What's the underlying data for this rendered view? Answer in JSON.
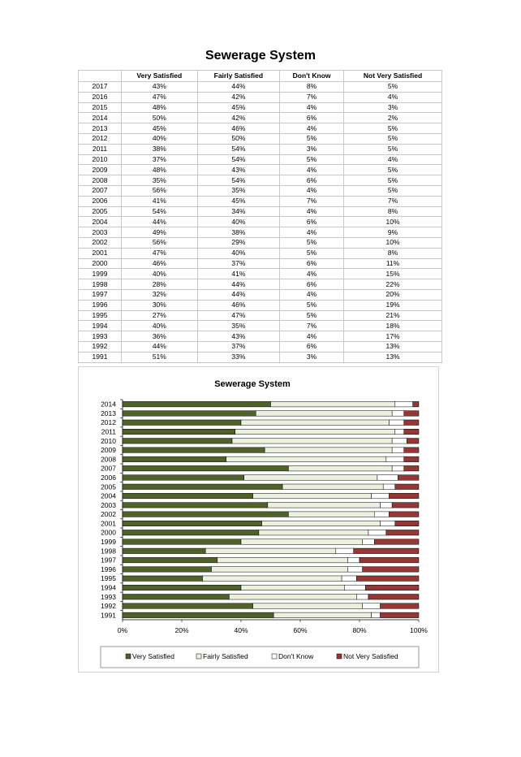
{
  "page_title": "Sewerage System",
  "table": {
    "headers": [
      "",
      "Very Satisfied",
      "Fairly Satisfied",
      "Don't Know",
      "Not Very Satisfied"
    ],
    "rows": [
      [
        "2017",
        "43%",
        "44%",
        "8%",
        "5%"
      ],
      [
        "2016",
        "47%",
        "42%",
        "7%",
        "4%"
      ],
      [
        "2015",
        "48%",
        "45%",
        "4%",
        "3%"
      ],
      [
        "2014",
        "50%",
        "42%",
        "6%",
        "2%"
      ],
      [
        "2013",
        "45%",
        "46%",
        "4%",
        "5%"
      ],
      [
        "2012",
        "40%",
        "50%",
        "5%",
        "5%"
      ],
      [
        "2011",
        "38%",
        "54%",
        "3%",
        "5%"
      ],
      [
        "2010",
        "37%",
        "54%",
        "5%",
        "4%"
      ],
      [
        "2009",
        "48%",
        "43%",
        "4%",
        "5%"
      ],
      [
        "2008",
        "35%",
        "54%",
        "6%",
        "5%"
      ],
      [
        "2007",
        "56%",
        "35%",
        "4%",
        "5%"
      ],
      [
        "2006",
        "41%",
        "45%",
        "7%",
        "7%"
      ],
      [
        "2005",
        "54%",
        "34%",
        "4%",
        "8%"
      ],
      [
        "2004",
        "44%",
        "40%",
        "6%",
        "10%"
      ],
      [
        "2003",
        "49%",
        "38%",
        "4%",
        "9%"
      ],
      [
        "2002",
        "56%",
        "29%",
        "5%",
        "10%"
      ],
      [
        "2001",
        "47%",
        "40%",
        "5%",
        "8%"
      ],
      [
        "2000",
        "46%",
        "37%",
        "6%",
        "11%"
      ],
      [
        "1999",
        "40%",
        "41%",
        "4%",
        "15%"
      ],
      [
        "1998",
        "28%",
        "44%",
        "6%",
        "22%"
      ],
      [
        "1997",
        "32%",
        "44%",
        "4%",
        "20%"
      ],
      [
        "1996",
        "30%",
        "46%",
        "5%",
        "19%"
      ],
      [
        "1995",
        "27%",
        "47%",
        "5%",
        "21%"
      ],
      [
        "1994",
        "40%",
        "35%",
        "7%",
        "18%"
      ],
      [
        "1993",
        "36%",
        "43%",
        "4%",
        "17%"
      ],
      [
        "1992",
        "44%",
        "37%",
        "6%",
        "13%"
      ],
      [
        "1991",
        "51%",
        "33%",
        "3%",
        "13%"
      ]
    ]
  },
  "chart_data": {
    "type": "bar",
    "orientation": "horizontal",
    "stacked": "percent",
    "title": "Sewerage System",
    "categories": [
      "2014",
      "2013",
      "2012",
      "2011",
      "2010",
      "2009",
      "2008",
      "2007",
      "2006",
      "2005",
      "2004",
      "2003",
      "2002",
      "2001",
      "2000",
      "1999",
      "1998",
      "1997",
      "1996",
      "1995",
      "1994",
      "1993",
      "1992",
      "1991"
    ],
    "series": [
      {
        "name": "Very Satisfied",
        "color": "#4f6228",
        "values": [
          50,
          45,
          40,
          38,
          37,
          48,
          35,
          56,
          41,
          54,
          44,
          49,
          56,
          47,
          46,
          40,
          28,
          32,
          30,
          27,
          40,
          36,
          44,
          51
        ]
      },
      {
        "name": "Fairly Satisfied",
        "color": "#ebf1de",
        "values": [
          42,
          46,
          50,
          54,
          54,
          43,
          54,
          35,
          45,
          34,
          40,
          38,
          29,
          40,
          37,
          41,
          44,
          44,
          46,
          47,
          35,
          43,
          37,
          33
        ]
      },
      {
        "name": "Don't Know",
        "color": "#ffffff",
        "values": [
          6,
          4,
          5,
          3,
          5,
          4,
          6,
          4,
          7,
          4,
          6,
          4,
          5,
          5,
          6,
          4,
          6,
          4,
          5,
          5,
          7,
          4,
          6,
          3
        ]
      },
      {
        "name": "Not Very Satisfied",
        "color": "#953735",
        "values": [
          2,
          5,
          5,
          5,
          4,
          5,
          5,
          5,
          7,
          8,
          10,
          9,
          10,
          8,
          11,
          15,
          22,
          20,
          19,
          21,
          18,
          17,
          13,
          13
        ]
      }
    ],
    "x_ticks": [
      "0%",
      "20%",
      "40%",
      "60%",
      "80%",
      "100%"
    ],
    "xlim": [
      0,
      100
    ],
    "grid": false,
    "legend_position": "bottom"
  }
}
